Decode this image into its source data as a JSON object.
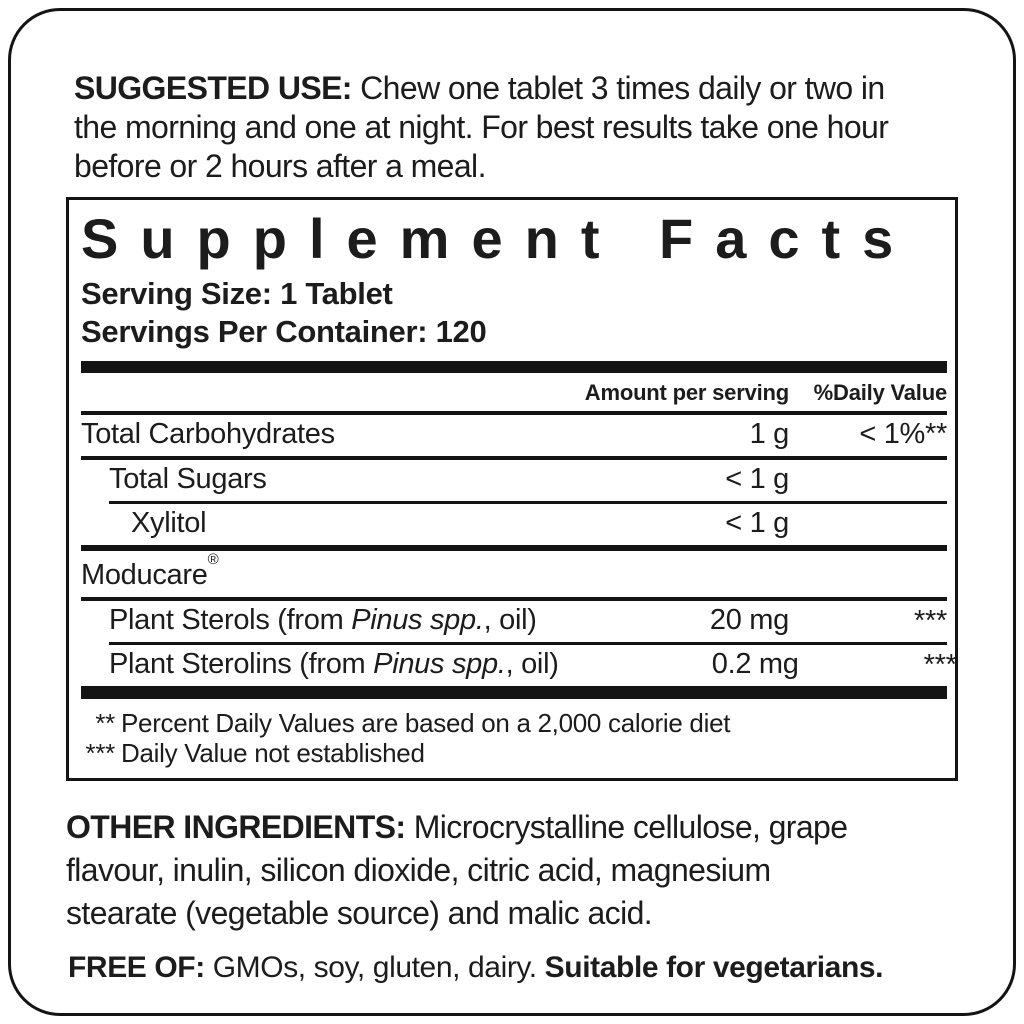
{
  "colors": {
    "text": "#1c1c1c",
    "border": "#141414",
    "background": "#ffffff"
  },
  "suggested_use": {
    "heading": "SUGGESTED USE:",
    "line1": "Chew one tablet 3 times daily or two in",
    "line2": "the morning and one at night. For best results take one hour",
    "line3": "before or 2 hours after a meal."
  },
  "supplement_facts": {
    "title": "Supplement Facts",
    "serving_size": "Serving Size: 1 Tablet",
    "servings_per_container": "Servings Per Container: 120",
    "columns": {
      "amount": "Amount per serving",
      "daily_value": "%Daily Value"
    },
    "rows": [
      {
        "name": "Total Carbohydrates",
        "amount": "1 g",
        "daily_value": "< 1%**"
      },
      {
        "name": "Total Sugars",
        "amount": "< 1 g",
        "daily_value": ""
      },
      {
        "name": "Xylitol",
        "amount": "< 1 g",
        "daily_value": ""
      },
      {
        "name": "Moducare",
        "trademark": "®",
        "amount": "",
        "daily_value": ""
      },
      {
        "name_pre": "Plant Sterols (from ",
        "name_italic": "Pinus spp.",
        "name_post": ", oil)",
        "amount": "20 mg",
        "daily_value": "***"
      },
      {
        "name_pre": "Plant Sterolins (from ",
        "name_italic": "Pinus spp.",
        "name_post": ", oil)",
        "amount": "0.2 mg",
        "daily_value": "***"
      }
    ],
    "footnotes": [
      {
        "marker": "**",
        "text": "Percent Daily Values are based on a 2,000 calorie diet"
      },
      {
        "marker": "***",
        "text": "Daily Value not established"
      }
    ]
  },
  "other_ingredients": {
    "heading": "OTHER INGREDIENTS:",
    "line1": "Microcrystalline cellulose, grape",
    "line2": "flavour, inulin, silicon dioxide, citric acid, magnesium",
    "line3": "stearate (vegetable source) and malic acid."
  },
  "free_of": {
    "heading": "FREE OF:",
    "text": "GMOs, soy, gluten, dairy.",
    "suffix": "Suitable for vegetarians."
  }
}
